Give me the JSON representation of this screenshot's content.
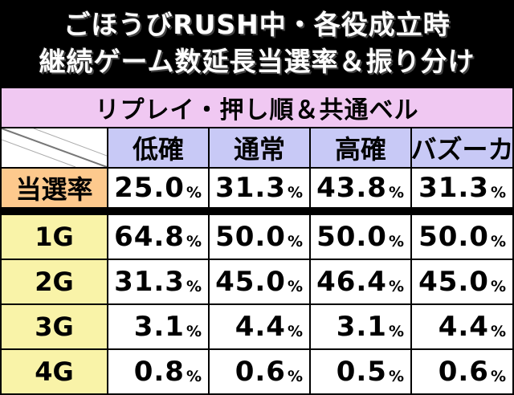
{
  "title": {
    "line1": "ごほうびRUSH中・各役成立時",
    "line2": "継続ゲーム数延長当選率＆振り分け"
  },
  "table": {
    "subheader": "リプレイ・押し順＆共通ベル",
    "columns": [
      "低確",
      "通常",
      "高確",
      "バズーカ"
    ],
    "rate_row": {
      "label": "当選率",
      "values": [
        "25.0",
        "31.3",
        "43.8",
        "31.3"
      ]
    },
    "rows": [
      {
        "label": "1G",
        "values": [
          "64.8",
          "50.0",
          "50.0",
          "50.0"
        ]
      },
      {
        "label": "2G",
        "values": [
          "31.3",
          "45.0",
          "46.4",
          "45.0"
        ]
      },
      {
        "label": "3G",
        "values": [
          "3.1",
          "4.4",
          "3.1",
          "4.4"
        ]
      },
      {
        "label": "4G",
        "values": [
          "0.8",
          "0.6",
          "0.5",
          "0.6"
        ]
      }
    ],
    "unit": "%"
  },
  "colors": {
    "background": "#000000",
    "subheader": "#f0c8f2",
    "column_header": "#c8c9f6",
    "rate_label": "#fdc98d",
    "row_label": "#f9f3a8",
    "value_cell": "#ffffff"
  }
}
